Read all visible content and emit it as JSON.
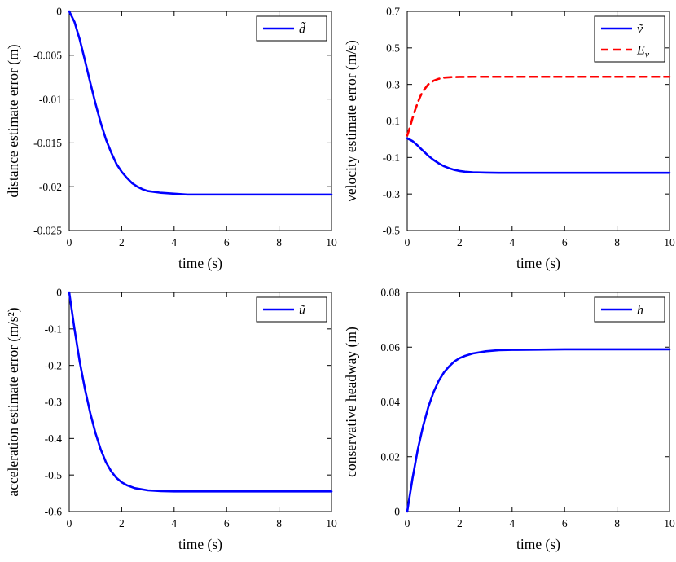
{
  "figure": {
    "background": "#ffffff",
    "axis_color": "#000000"
  },
  "chart_data": [
    {
      "name": "distance-estimate-error",
      "type": "line",
      "title": "",
      "xlabel": "time (s)",
      "ylabel": "distance estimate error (m)",
      "xlim": [
        0,
        10
      ],
      "ylim": [
        -0.025,
        0
      ],
      "xticks": [
        0,
        2,
        4,
        6,
        8,
        10
      ],
      "xtick_labels": [
        "0",
        "2",
        "4",
        "6",
        "8",
        "10"
      ],
      "yticks": [
        0,
        -0.005,
        -0.01,
        -0.015,
        -0.02,
        -0.025
      ],
      "ytick_labels": [
        "0",
        "-0.005",
        "-0.01",
        "-0.015",
        "-0.02",
        "-0.025"
      ],
      "grid": false,
      "legend_position": "top-right",
      "series": [
        {
          "name": "d-tilde",
          "label": "d̃",
          "color": "#0000FF",
          "dash": false,
          "width": 2.6,
          "x": [
            0,
            0.2,
            0.4,
            0.6,
            0.8,
            1,
            1.2,
            1.4,
            1.6,
            1.8,
            2,
            2.2,
            2.4,
            2.6,
            2.8,
            3,
            3.5,
            4,
            4.5,
            5,
            6,
            7,
            8,
            9,
            10
          ],
          "y": [
            0,
            -0.0012,
            -0.0032,
            -0.0056,
            -0.0081,
            -0.0105,
            -0.0127,
            -0.0146,
            -0.0161,
            -0.0174,
            -0.0183,
            -0.019,
            -0.0196,
            -0.02,
            -0.0203,
            -0.0205,
            -0.0207,
            -0.0208,
            -0.0209,
            -0.0209,
            -0.0209,
            -0.0209,
            -0.0209,
            -0.0209,
            -0.0209
          ]
        }
      ]
    },
    {
      "name": "velocity-estimate-error",
      "type": "line",
      "title": "",
      "xlabel": "time (s)",
      "ylabel": "velocity estimate error (m/s)",
      "xlim": [
        0,
        10
      ],
      "ylim": [
        -0.5,
        0.7
      ],
      "xticks": [
        0,
        2,
        4,
        6,
        8,
        10
      ],
      "xtick_labels": [
        "0",
        "2",
        "4",
        "6",
        "8",
        "10"
      ],
      "yticks": [
        0.7,
        0.5,
        0.3,
        0.1,
        -0.1,
        -0.3,
        -0.5
      ],
      "ytick_labels": [
        "0.7",
        "0.5",
        "0.3",
        "0.1",
        "-0.1",
        "-0.3",
        "-0.5"
      ],
      "grid": false,
      "legend_position": "top-right",
      "series": [
        {
          "name": "v-tilde",
          "label": "ṽ",
          "color": "#0000FF",
          "dash": false,
          "width": 2.6,
          "x": [
            0,
            0.2,
            0.4,
            0.6,
            0.8,
            1,
            1.2,
            1.4,
            1.6,
            1.8,
            2,
            2.2,
            2.5,
            3,
            3.5,
            4,
            5,
            6,
            7,
            8,
            9,
            10
          ],
          "y": [
            0.005,
            -0.01,
            -0.035,
            -0.063,
            -0.09,
            -0.113,
            -0.132,
            -0.148,
            -0.159,
            -0.168,
            -0.174,
            -0.178,
            -0.181,
            -0.183,
            -0.184,
            -0.184,
            -0.184,
            -0.184,
            -0.184,
            -0.184,
            -0.184,
            -0.184
          ]
        },
        {
          "name": "E-v",
          "label": "E_v",
          "color": "#FF0000",
          "dash": true,
          "width": 2.6,
          "x": [
            0,
            0.1,
            0.2,
            0.3,
            0.4,
            0.5,
            0.6,
            0.8,
            1,
            1.2,
            1.4,
            1.7,
            2,
            2.5,
            3,
            4,
            5,
            6,
            7,
            8,
            9,
            10
          ],
          "y": [
            0.02,
            0.065,
            0.115,
            0.16,
            0.2,
            0.235,
            0.263,
            0.3,
            0.32,
            0.331,
            0.337,
            0.34,
            0.341,
            0.342,
            0.342,
            0.342,
            0.342,
            0.342,
            0.342,
            0.342,
            0.342,
            0.342
          ]
        }
      ]
    },
    {
      "name": "acceleration-estimate-error",
      "type": "line",
      "title": "",
      "xlabel": "time (s)",
      "ylabel": "acceleration estimate error (m/s²)",
      "xlim": [
        0,
        10
      ],
      "ylim": [
        -0.6,
        0
      ],
      "xticks": [
        0,
        2,
        4,
        6,
        8,
        10
      ],
      "xtick_labels": [
        "0",
        "2",
        "4",
        "6",
        "8",
        "10"
      ],
      "yticks": [
        0,
        -0.1,
        -0.2,
        -0.3,
        -0.4,
        -0.5,
        -0.6
      ],
      "ytick_labels": [
        "0",
        "-0.1",
        "-0.2",
        "-0.3",
        "-0.4",
        "-0.5",
        "-0.6"
      ],
      "grid": false,
      "legend_position": "top-right",
      "series": [
        {
          "name": "u-tilde",
          "label": "ũ",
          "color": "#0000FF",
          "dash": false,
          "width": 2.6,
          "x": [
            0,
            0.2,
            0.4,
            0.6,
            0.8,
            1,
            1.2,
            1.4,
            1.6,
            1.8,
            2,
            2.2,
            2.5,
            3,
            3.5,
            4,
            5,
            6,
            7,
            8,
            9,
            10
          ],
          "y": [
            0,
            -0.1,
            -0.19,
            -0.265,
            -0.33,
            -0.385,
            -0.43,
            -0.465,
            -0.49,
            -0.508,
            -0.52,
            -0.528,
            -0.536,
            -0.542,
            -0.544,
            -0.545,
            -0.545,
            -0.545,
            -0.545,
            -0.545,
            -0.545,
            -0.545
          ]
        }
      ]
    },
    {
      "name": "conservative-headway",
      "type": "line",
      "title": "",
      "xlabel": "time (s)",
      "ylabel": "conservative headway (m)",
      "xlim": [
        0,
        10
      ],
      "ylim": [
        0,
        0.08
      ],
      "xticks": [
        0,
        2,
        4,
        6,
        8,
        10
      ],
      "xtick_labels": [
        "0",
        "2",
        "4",
        "6",
        "8",
        "10"
      ],
      "yticks": [
        0,
        0.02,
        0.04,
        0.06,
        0.08
      ],
      "ytick_labels": [
        "0",
        "0.02",
        "0.04",
        "0.06",
        "0.08"
      ],
      "grid": false,
      "legend_position": "top-right",
      "series": [
        {
          "name": "h",
          "label": "h",
          "color": "#0000FF",
          "dash": false,
          "width": 2.6,
          "x": [
            0,
            0.2,
            0.4,
            0.6,
            0.8,
            1,
            1.2,
            1.4,
            1.6,
            1.8,
            2,
            2.2,
            2.5,
            3,
            3.5,
            4,
            5,
            6,
            7,
            8,
            9,
            10
          ],
          "y": [
            0,
            0.012,
            0.0225,
            0.031,
            0.038,
            0.0435,
            0.0477,
            0.0508,
            0.053,
            0.0548,
            0.056,
            0.0568,
            0.0577,
            0.0585,
            0.0589,
            0.059,
            0.0591,
            0.0592,
            0.0592,
            0.0592,
            0.0592,
            0.0592
          ]
        }
      ]
    }
  ]
}
